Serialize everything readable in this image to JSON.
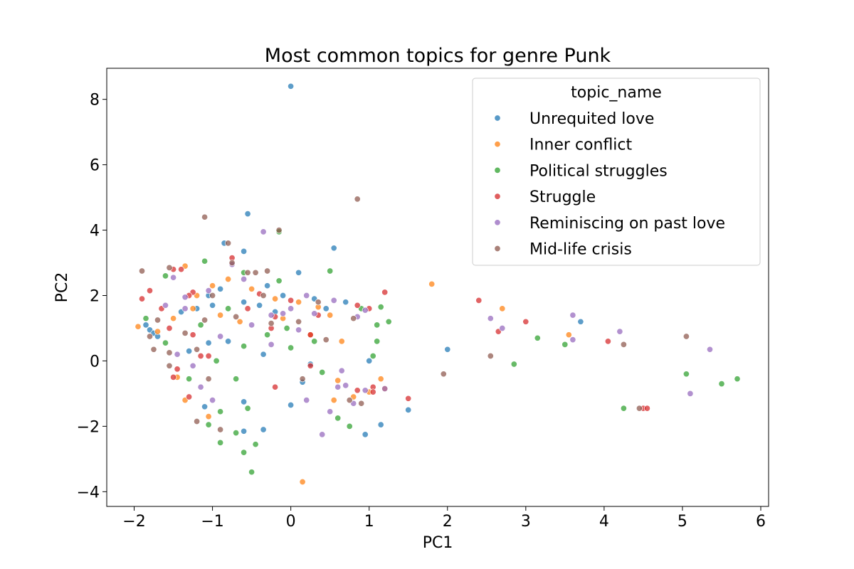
{
  "chart_data": {
    "type": "scatter",
    "title": "Most common topics for genre Punk",
    "xlabel": "PC1",
    "ylabel": "PC2",
    "xlim": [
      -2.35,
      6.1
    ],
    "ylim": [
      -4.45,
      8.95
    ],
    "xticks": [
      -2,
      -1,
      0,
      1,
      2,
      3,
      4,
      5,
      6
    ],
    "yticks": [
      -4,
      -2,
      0,
      2,
      4,
      6,
      8
    ],
    "grid": false,
    "legend": {
      "title": "topic_name",
      "position": "top-right"
    },
    "series": [
      {
        "name": "Unrequited love",
        "color": "#1f77b4",
        "points": [
          [
            0.0,
            8.4
          ],
          [
            -0.55,
            4.5
          ],
          [
            0.55,
            3.45
          ],
          [
            -0.6,
            3.35
          ],
          [
            -0.85,
            3.6
          ],
          [
            0.1,
            2.7
          ],
          [
            -0.3,
            2.3
          ],
          [
            -0.1,
            2.0
          ],
          [
            -0.6,
            1.8
          ],
          [
            -1.05,
            2.0
          ],
          [
            -1.2,
            1.6
          ],
          [
            -1.85,
            1.1
          ],
          [
            -1.8,
            0.95
          ],
          [
            -1.75,
            0.85
          ],
          [
            -1.7,
            0.75
          ],
          [
            -1.3,
            0.3
          ],
          [
            -1.05,
            0.55
          ],
          [
            -0.8,
            0.6
          ],
          [
            -0.35,
            0.2
          ],
          [
            0.15,
            -0.65
          ],
          [
            0.25,
            -0.1
          ],
          [
            0.95,
            -2.25
          ],
          [
            1.15,
            -1.95
          ],
          [
            1.5,
            -1.5
          ],
          [
            2.0,
            0.35
          ],
          [
            1.0,
            0.0
          ],
          [
            0.7,
            1.8
          ],
          [
            3.7,
            1.2
          ],
          [
            -0.35,
            -2.1
          ],
          [
            -0.6,
            -2.15
          ],
          [
            -0.6,
            -1.25
          ],
          [
            -1.1,
            -1.4
          ],
          [
            0.0,
            -1.35
          ],
          [
            -0.9,
            2.2
          ],
          [
            -0.4,
            1.7
          ],
          [
            0.3,
            1.9
          ],
          [
            0.45,
            1.6
          ],
          [
            -1.4,
            1.5
          ],
          [
            -1.0,
            1.7
          ],
          [
            -0.2,
            1.5
          ]
        ]
      },
      {
        "name": "Inner conflict",
        "color": "#ff7f0e",
        "points": [
          [
            1.8,
            2.35
          ],
          [
            2.7,
            1.6
          ],
          [
            3.55,
            0.8
          ],
          [
            0.15,
            -3.7
          ],
          [
            1.2,
            -0.85
          ],
          [
            1.15,
            -0.55
          ],
          [
            0.55,
            -1.2
          ],
          [
            0.8,
            -1.1
          ],
          [
            0.6,
            -0.6
          ],
          [
            -1.35,
            -1.2
          ],
          [
            -1.45,
            -0.5
          ],
          [
            -1.05,
            -1.7
          ],
          [
            -1.7,
            0.9
          ],
          [
            -1.5,
            1.3
          ],
          [
            -1.35,
            2.9
          ],
          [
            -1.2,
            2.0
          ],
          [
            -1.0,
            2.3
          ],
          [
            -0.8,
            2.5
          ],
          [
            -0.5,
            2.2
          ],
          [
            -0.2,
            1.9
          ],
          [
            0.1,
            1.8
          ],
          [
            0.35,
            1.65
          ],
          [
            0.65,
            0.6
          ],
          [
            0.25,
            0.8
          ],
          [
            -0.65,
            1.2
          ],
          [
            -1.95,
            1.05
          ],
          [
            -1.25,
            1.6
          ],
          [
            -0.9,
            1.4
          ],
          [
            0.5,
            1.4
          ],
          [
            -0.1,
            1.3
          ],
          [
            1.0,
            -0.95
          ]
        ]
      },
      {
        "name": "Political struggles",
        "color": "#2ca02c",
        "points": [
          [
            5.7,
            -0.55
          ],
          [
            5.5,
            -0.7
          ],
          [
            5.05,
            -0.4
          ],
          [
            4.25,
            -1.45
          ],
          [
            3.5,
            0.5
          ],
          [
            3.15,
            0.7
          ],
          [
            2.85,
            -0.1
          ],
          [
            1.15,
            1.65
          ],
          [
            1.25,
            1.2
          ],
          [
            1.1,
            1.1
          ],
          [
            1.1,
            0.6
          ],
          [
            1.05,
            0.15
          ],
          [
            0.5,
            2.75
          ],
          [
            0.4,
            -0.35
          ],
          [
            0.6,
            -1.75
          ],
          [
            0.75,
            -2.0
          ],
          [
            -0.5,
            -3.4
          ],
          [
            -0.45,
            -2.55
          ],
          [
            -0.6,
            -2.8
          ],
          [
            -0.7,
            -2.2
          ],
          [
            -0.9,
            -2.5
          ],
          [
            -0.9,
            -1.55
          ],
          [
            -1.05,
            -1.95
          ],
          [
            -0.55,
            -1.45
          ],
          [
            -0.7,
            -0.55
          ],
          [
            -0.95,
            -0.0
          ],
          [
            -1.3,
            -0.55
          ],
          [
            -1.6,
            0.55
          ],
          [
            -0.6,
            0.45
          ],
          [
            -0.15,
            2.45
          ],
          [
            0.0,
            0.4
          ],
          [
            -1.1,
            3.05
          ],
          [
            -0.6,
            2.7
          ],
          [
            -0.15,
            3.95
          ],
          [
            -1.6,
            2.6
          ],
          [
            -1.85,
            1.3
          ],
          [
            -0.3,
            0.8
          ],
          [
            -0.05,
            1.0
          ],
          [
            0.3,
            0.6
          ],
          [
            0.9,
            1.6
          ],
          [
            -0.8,
            1.6
          ],
          [
            -1.15,
            1.1
          ]
        ]
      },
      {
        "name": "Struggle",
        "color": "#d62728",
        "points": [
          [
            2.4,
            1.85
          ],
          [
            3.0,
            1.2
          ],
          [
            2.65,
            0.9
          ],
          [
            4.05,
            0.6
          ],
          [
            4.5,
            -1.45
          ],
          [
            4.55,
            -1.45
          ],
          [
            1.5,
            -1.15
          ],
          [
            1.2,
            2.1
          ],
          [
            1.0,
            1.6
          ],
          [
            0.85,
            1.7
          ],
          [
            1.05,
            -0.8
          ],
          [
            1.05,
            -0.95
          ],
          [
            0.25,
            -0.15
          ],
          [
            -0.2,
            -0.8
          ],
          [
            -0.75,
            3.15
          ],
          [
            -0.4,
            2.05
          ],
          [
            -1.4,
            2.8
          ],
          [
            -1.5,
            2.8
          ],
          [
            -1.25,
            2.1
          ],
          [
            -1.8,
            2.15
          ],
          [
            -1.9,
            1.9
          ],
          [
            -1.65,
            1.6
          ],
          [
            -1.55,
            1.0
          ],
          [
            -1.25,
            0.8
          ],
          [
            -1.15,
            0.15
          ],
          [
            -1.05,
            0.15
          ],
          [
            -1.45,
            -0.25
          ],
          [
            -1.5,
            -0.5
          ],
          [
            -1.3,
            -1.1
          ],
          [
            0.0,
            1.85
          ],
          [
            0.35,
            1.4
          ],
          [
            -0.25,
            1.0
          ],
          [
            0.25,
            0.8
          ],
          [
            -0.55,
            1.6
          ],
          [
            -1.3,
            2.0
          ],
          [
            -0.2,
            1.35
          ],
          [
            0.85,
            -0.9
          ]
        ]
      },
      {
        "name": "Reminiscing on past love",
        "color": "#9467bd",
        "points": [
          [
            5.35,
            0.35
          ],
          [
            5.1,
            -1.0
          ],
          [
            4.2,
            0.9
          ],
          [
            3.6,
            1.4
          ],
          [
            3.6,
            0.65
          ],
          [
            2.7,
            1.0
          ],
          [
            2.55,
            1.3
          ],
          [
            1.2,
            -0.85
          ],
          [
            0.95,
            -0.9
          ],
          [
            0.8,
            -1.3
          ],
          [
            0.7,
            -0.75
          ],
          [
            0.6,
            -0.8
          ],
          [
            0.5,
            -1.55
          ],
          [
            0.4,
            -2.25
          ],
          [
            0.2,
            -1.2
          ],
          [
            0.1,
            0.95
          ],
          [
            -0.35,
            3.95
          ],
          [
            -0.25,
            1.4
          ],
          [
            -0.25,
            0.5
          ],
          [
            0.3,
            1.45
          ],
          [
            -0.6,
            2.5
          ],
          [
            -1.05,
            2.15
          ],
          [
            -1.35,
            1.6
          ],
          [
            -1.6,
            1.7
          ],
          [
            -1.45,
            0.2
          ],
          [
            -1.25,
            -0.15
          ],
          [
            -1.0,
            -1.2
          ],
          [
            -1.15,
            -0.8
          ],
          [
            -1.35,
            1.95
          ],
          [
            -1.5,
            2.55
          ],
          [
            -0.1,
            1.45
          ],
          [
            -0.75,
            2.95
          ],
          [
            0.55,
            1.85
          ],
          [
            0.2,
            2.0
          ],
          [
            -0.5,
            1.1
          ],
          [
            0.0,
            1.6
          ],
          [
            0.85,
            1.35
          ],
          [
            0.95,
            1.55
          ],
          [
            -0.9,
            0.75
          ],
          [
            0.65,
            -0.3
          ]
        ]
      },
      {
        "name": "Mid-life crisis",
        "color": "#8c564b",
        "points": [
          [
            0.85,
            4.95
          ],
          [
            5.05,
            0.75
          ],
          [
            4.25,
            0.5
          ],
          [
            4.45,
            -1.45
          ],
          [
            2.55,
            0.15
          ],
          [
            1.95,
            -0.4
          ],
          [
            0.9,
            -1.3
          ],
          [
            0.75,
            -1.2
          ],
          [
            0.8,
            1.3
          ],
          [
            0.15,
            -0.55
          ],
          [
            -1.1,
            4.4
          ],
          [
            -0.8,
            3.6
          ],
          [
            -0.75,
            3.0
          ],
          [
            -0.55,
            2.7
          ],
          [
            -0.45,
            2.7
          ],
          [
            -0.3,
            2.75
          ],
          [
            -0.15,
            4.0
          ],
          [
            -1.9,
            2.75
          ],
          [
            -1.55,
            2.85
          ],
          [
            -1.7,
            1.25
          ],
          [
            -1.8,
            0.75
          ],
          [
            -1.75,
            0.35
          ],
          [
            -1.55,
            0.25
          ],
          [
            -1.55,
            -0.15
          ],
          [
            -1.35,
            0.85
          ],
          [
            -1.2,
            0.35
          ],
          [
            -1.05,
            -0.55
          ],
          [
            -1.2,
            -1.85
          ],
          [
            -0.9,
            -2.1
          ],
          [
            -1.1,
            1.25
          ],
          [
            -0.25,
            1.15
          ],
          [
            0.35,
            1.8
          ],
          [
            0.45,
            0.65
          ],
          [
            -0.7,
            1.35
          ],
          [
            -1.0,
            2.0
          ],
          [
            -0.35,
            2.0
          ],
          [
            0.1,
            1.2
          ]
        ]
      }
    ]
  }
}
